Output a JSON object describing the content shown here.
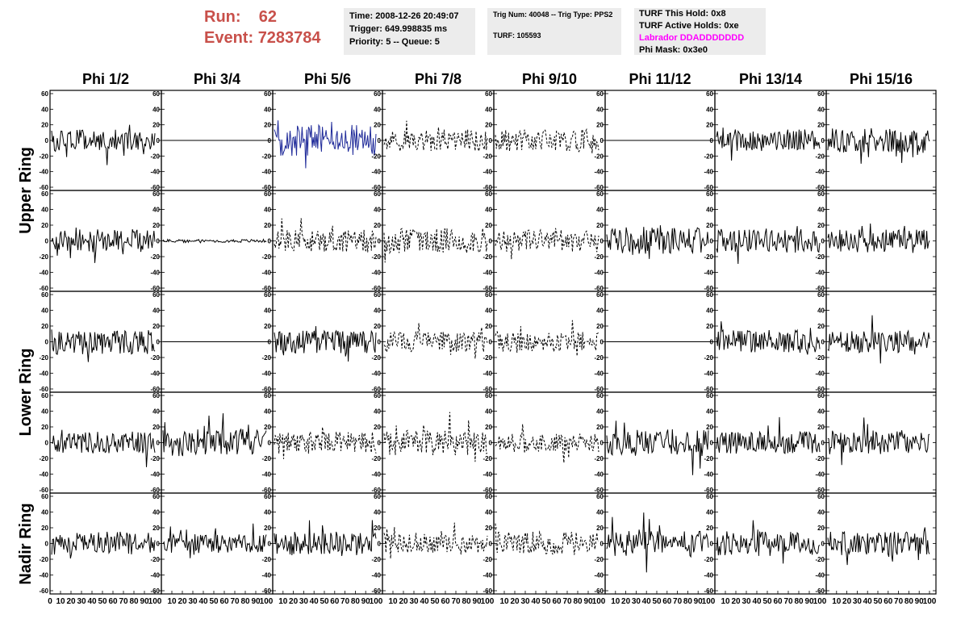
{
  "header": {
    "run_label": "Run:",
    "run_value": "62",
    "event_label": "Event:",
    "event_value": "7283784",
    "time": "Time: 2008-12-26 20:49:07",
    "trigger": "Trigger: 649.998835 ms",
    "priority": "Priority: 5 -- Queue: 5",
    "trig_num": "Trig Num: 40048 -- Trig Type: PPS2",
    "turf": "TURF: 105593",
    "turf_hold": "TURF This Hold: 0x8",
    "turf_active": "TURF Active Holds: 0xe",
    "labrador": "Labrador DDADDDDDDD",
    "phi_mask": "Phi Mask: 0x3e0"
  },
  "colors": {
    "run_text": "#c8504a",
    "labrador_text": "#ff00ff",
    "blue_trace": "#1f2a99",
    "box_bg": "#ececec"
  },
  "chart_data": {
    "type": "line",
    "columns": [
      "Phi 1/2",
      "Phi 3/4",
      "Phi 5/6",
      "Phi 7/8",
      "Phi 9/10",
      "Phi 11/12",
      "Phi 13/14",
      "Phi 15/16"
    ],
    "ring_labels": [
      "Upper Ring",
      "Lower Ring",
      "Nadir Ring"
    ],
    "xlim": [
      0,
      100
    ],
    "ylim": [
      -60,
      60
    ],
    "y_ticks": [
      -60,
      -40,
      -20,
      0,
      20,
      40,
      60
    ],
    "x_tick_labels": [
      "0",
      "10",
      "20",
      "30",
      "40",
      "50",
      "60",
      "70",
      "80",
      "90",
      "100"
    ],
    "grid": false,
    "panels": [
      [
        {
          "style": "solid",
          "amp": 14,
          "seed": 11
        },
        {
          "style": "flat",
          "amp": 0,
          "seed": 12
        },
        {
          "style": "blue",
          "amp": 20,
          "seed": 13
        },
        {
          "style": "dashed",
          "amp": 14,
          "seed": 14
        },
        {
          "style": "dashed",
          "amp": 14,
          "seed": 15
        },
        {
          "style": "flat",
          "amp": 0,
          "seed": 16
        },
        {
          "style": "solid",
          "amp": 14,
          "seed": 17
        },
        {
          "style": "solid",
          "amp": 16,
          "seed": 18
        }
      ],
      [
        {
          "style": "solid",
          "amp": 15,
          "seed": 21
        },
        {
          "style": "solid",
          "amp": 2,
          "seed": 22
        },
        {
          "style": "dashed",
          "amp": 14,
          "seed": 23
        },
        {
          "style": "dashed",
          "amp": 16,
          "seed": 24
        },
        {
          "style": "dashed",
          "amp": 14,
          "seed": 25
        },
        {
          "style": "solid",
          "amp": 18,
          "seed": 26
        },
        {
          "style": "solid",
          "amp": 15,
          "seed": 27
        },
        {
          "style": "solid",
          "amp": 15,
          "seed": 28
        }
      ],
      [
        {
          "style": "solid",
          "amp": 16,
          "seed": 31
        },
        {
          "style": "flat",
          "amp": 0,
          "seed": 32
        },
        {
          "style": "solid",
          "amp": 15,
          "seed": 33
        },
        {
          "style": "dashed",
          "amp": 13,
          "seed": 34
        },
        {
          "style": "dashed",
          "amp": 13,
          "seed": 35
        },
        {
          "style": "flat",
          "amp": 0,
          "seed": 36
        },
        {
          "style": "solid",
          "amp": 15,
          "seed": 37
        },
        {
          "style": "solid",
          "amp": 14,
          "seed": 38
        }
      ],
      [
        {
          "style": "solid",
          "amp": 14,
          "seed": 41
        },
        {
          "style": "solid",
          "amp": 17,
          "seed": 42
        },
        {
          "style": "dashed",
          "amp": 14,
          "seed": 43
        },
        {
          "style": "dashed",
          "amp": 16,
          "seed": 44
        },
        {
          "style": "dashed",
          "amp": 12,
          "seed": 45
        },
        {
          "style": "solid",
          "amp": 17,
          "seed": 46
        },
        {
          "style": "solid",
          "amp": 14,
          "seed": 47
        },
        {
          "style": "solid",
          "amp": 16,
          "seed": 48
        }
      ],
      [
        {
          "style": "solid",
          "amp": 15,
          "seed": 51
        },
        {
          "style": "solid",
          "amp": 12,
          "seed": 52
        },
        {
          "style": "solid",
          "amp": 15,
          "seed": 53
        },
        {
          "style": "dashed",
          "amp": 12,
          "seed": 54
        },
        {
          "style": "dashed",
          "amp": 15,
          "seed": 55
        },
        {
          "style": "solid",
          "amp": 16,
          "seed": 56
        },
        {
          "style": "solid",
          "amp": 16,
          "seed": 57
        },
        {
          "style": "solid",
          "amp": 15,
          "seed": 58
        }
      ]
    ]
  }
}
